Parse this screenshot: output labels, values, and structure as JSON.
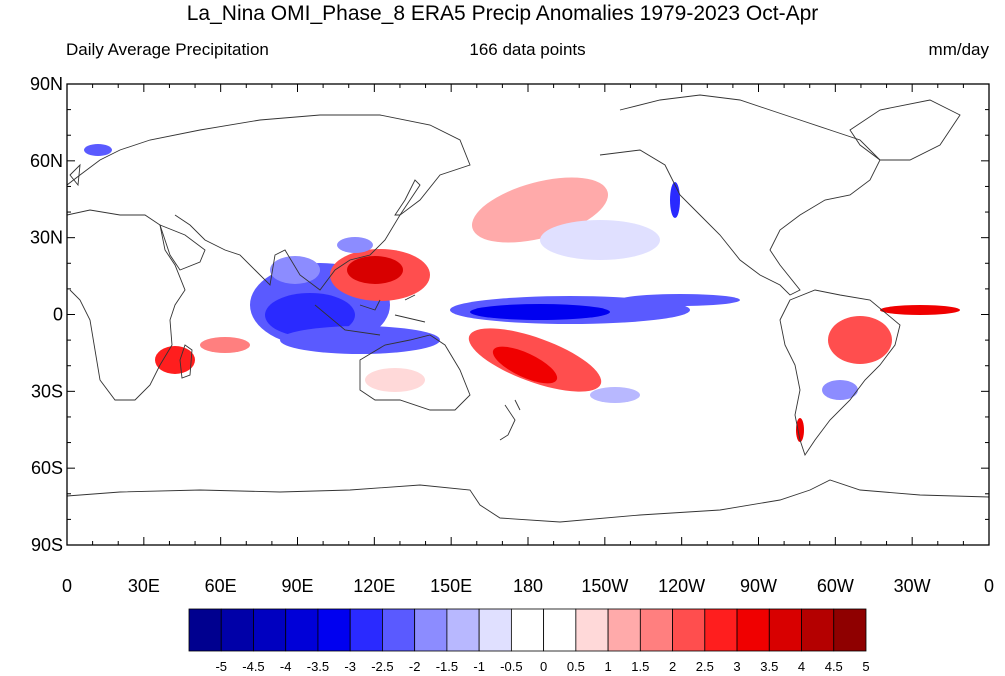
{
  "title": "La_Nina OMI_Phase_8 ERA5 Precip Anomalies 1979-2023 Oct-Apr",
  "subtitle_left": "Daily Average Precipitation",
  "subtitle_center": "166 data points",
  "subtitle_right": "mm/day",
  "lat_labels": [
    "90N",
    "60N",
    "30N",
    "0",
    "30S",
    "60S",
    "90S"
  ],
  "lon_labels": [
    "0",
    "30E",
    "60E",
    "90E",
    "120E",
    "150E",
    "180",
    "150W",
    "120W",
    "90W",
    "60W",
    "30W",
    "0"
  ],
  "colorbar": {
    "labels": [
      "-5",
      "-4.5",
      "-4",
      "-3.5",
      "-3",
      "-2.5",
      "-2",
      "-1.5",
      "-1",
      "-0.5",
      "0",
      "0.5",
      "1",
      "1.5",
      "2",
      "2.5",
      "3",
      "3.5",
      "4",
      "4.5",
      "5"
    ],
    "colors": [
      "#00008f",
      "#0000a8",
      "#0000c0",
      "#0000d8",
      "#0000f0",
      "#2a2aff",
      "#5a5aff",
      "#8c8cff",
      "#b8b8ff",
      "#e0e0ff",
      "#ffffff",
      "#ffffff",
      "#ffd9d9",
      "#ffaaaa",
      "#ff7f7f",
      "#ff4e4e",
      "#ff1e1e",
      "#f00000",
      "#d80000",
      "#b40000",
      "#8f0000"
    ]
  },
  "colors": {
    "frame": "#000000",
    "coast": "#333333"
  }
}
